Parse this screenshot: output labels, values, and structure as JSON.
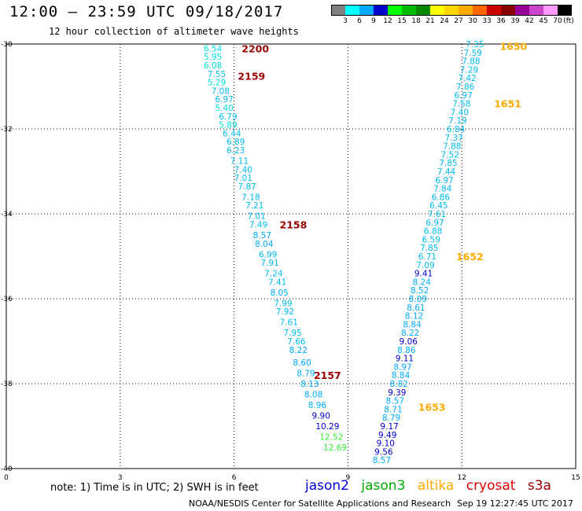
{
  "header": {
    "title": "12:00 — 23:59 UTC 09/18/2017",
    "subtitle": "12 hour collection of altimeter wave heights"
  },
  "colorbar": {
    "unit": "(ft)",
    "labels": [
      "3",
      "6",
      "9",
      "12",
      "15",
      "18",
      "21",
      "24",
      "27",
      "30",
      "33",
      "36",
      "39",
      "42",
      "45",
      "70"
    ],
    "colors": [
      "#808080",
      "#00ffff",
      "#00aaff",
      "#0000cc",
      "#00ff00",
      "#00bb00",
      "#008800",
      "#ffff00",
      "#ffd700",
      "#ffaa00",
      "#ff6600",
      "#cc0000",
      "#880000",
      "#990099",
      "#cc44cc",
      "#ff99ff",
      "#000000"
    ]
  },
  "legend": {
    "note": "note: 1) Time is in UTC; 2) SWH is in feet",
    "satellites": [
      {
        "name": "jason2",
        "color": "#0000dd"
      },
      {
        "name": "jason3",
        "color": "#00aa00"
      },
      {
        "name": "altika",
        "color": "#ffaa00"
      },
      {
        "name": "cryosat",
        "color": "#dd0000"
      },
      {
        "name": "s3a",
        "color": "#990000"
      }
    ]
  },
  "footer": {
    "credit": "NOAA/NESDIS Center for Satellite Applications and Research",
    "timestamp": "Sep 19 12:27:45 UTC 2017"
  },
  "chart_data": {
    "type": "scatter",
    "xlim": [
      0,
      15
    ],
    "ylim": [
      -40,
      -30
    ],
    "xticks": [
      "0",
      "3",
      "6",
      "9",
      "12",
      "15"
    ],
    "yticks": [
      "-30",
      "-32",
      "-34",
      "-36",
      "-38",
      "-40"
    ],
    "grid": true,
    "tracks": [
      {
        "satellite": "s3a",
        "time_labels": [
          {
            "label": "2200",
            "x": 6.2,
            "y": -30.1
          },
          {
            "label": "2159",
            "x": 6.1,
            "y": -30.75
          },
          {
            "label": "2158",
            "x": 7.2,
            "y": -34.25
          },
          {
            "label": "2157",
            "x": 8.1,
            "y": -37.8
          }
        ],
        "points": [
          {
            "x": 5.2,
            "y": -30.1,
            "v": "6.54",
            "c": "#00dddd"
          },
          {
            "x": 5.2,
            "y": -30.3,
            "v": "5.95",
            "c": "#00dddd"
          },
          {
            "x": 5.2,
            "y": -30.5,
            "v": "6.08",
            "c": "#00dddd"
          },
          {
            "x": 5.3,
            "y": -30.7,
            "v": "7.55",
            "c": "#00bbee"
          },
          {
            "x": 5.3,
            "y": -30.9,
            "v": "5.29",
            "c": "#00dddd"
          },
          {
            "x": 5.4,
            "y": -31.1,
            "v": "7.08",
            "c": "#00bbee"
          },
          {
            "x": 5.5,
            "y": -31.3,
            "v": "6.97",
            "c": "#00bbee"
          },
          {
            "x": 5.5,
            "y": -31.5,
            "v": "5.40",
            "c": "#00dddd"
          },
          {
            "x": 5.6,
            "y": -31.7,
            "v": "6.79",
            "c": "#00bbee"
          },
          {
            "x": 5.6,
            "y": -31.9,
            "v": "5.89",
            "c": "#00dddd"
          },
          {
            "x": 5.7,
            "y": -32.1,
            "v": "6.44",
            "c": "#00bbee"
          },
          {
            "x": 5.8,
            "y": -32.3,
            "v": "6.89",
            "c": "#00bbee"
          },
          {
            "x": 5.8,
            "y": -32.5,
            "v": "6.23",
            "c": "#00bbee"
          },
          {
            "x": 5.9,
            "y": -32.75,
            "v": "7.11",
            "c": "#00bbee"
          },
          {
            "x": 6.0,
            "y": -32.95,
            "v": "7.40",
            "c": "#00bbee"
          },
          {
            "x": 6.0,
            "y": -33.15,
            "v": "7.01",
            "c": "#00bbee"
          },
          {
            "x": 6.1,
            "y": -33.35,
            "v": "7.87",
            "c": "#00bbee"
          },
          {
            "x": 6.2,
            "y": -33.6,
            "v": "7.18",
            "c": "#00bbee"
          },
          {
            "x": 6.3,
            "y": -33.8,
            "v": "7.21",
            "c": "#00bbee"
          },
          {
            "x": 6.35,
            "y": -34.05,
            "v": "7.01",
            "c": "#00bbee"
          },
          {
            "x": 6.4,
            "y": -34.25,
            "v": "7.49",
            "c": "#00bbee"
          },
          {
            "x": 6.5,
            "y": -34.5,
            "v": "8.57",
            "c": "#00aaff"
          },
          {
            "x": 6.55,
            "y": -34.7,
            "v": "8.04",
            "c": "#00aaff"
          },
          {
            "x": 6.65,
            "y": -34.95,
            "v": "6.99",
            "c": "#00bbee"
          },
          {
            "x": 6.7,
            "y": -35.15,
            "v": "7.91",
            "c": "#00bbee"
          },
          {
            "x": 6.8,
            "y": -35.4,
            "v": "7.24",
            "c": "#00bbee"
          },
          {
            "x": 6.9,
            "y": -35.6,
            "v": "7.41",
            "c": "#00bbee"
          },
          {
            "x": 6.95,
            "y": -35.85,
            "v": "8.05",
            "c": "#00aaff"
          },
          {
            "x": 7.05,
            "y": -36.1,
            "v": "7.99",
            "c": "#00bbee"
          },
          {
            "x": 7.1,
            "y": -36.3,
            "v": "7.92",
            "c": "#00bbee"
          },
          {
            "x": 7.2,
            "y": -36.55,
            "v": "7.61",
            "c": "#00bbee"
          },
          {
            "x": 7.3,
            "y": -36.8,
            "v": "7.95",
            "c": "#00bbee"
          },
          {
            "x": 7.4,
            "y": -37.0,
            "v": "7.66",
            "c": "#00bbee"
          },
          {
            "x": 7.45,
            "y": -37.2,
            "v": "8.22",
            "c": "#00aaff"
          },
          {
            "x": 7.55,
            "y": -37.5,
            "v": "8.60",
            "c": "#00aaff"
          },
          {
            "x": 7.65,
            "y": -37.75,
            "v": "8.79",
            "c": "#00aaff"
          },
          {
            "x": 7.75,
            "y": -38.0,
            "v": "8.13",
            "c": "#00aaff"
          },
          {
            "x": 7.85,
            "y": -38.25,
            "v": "8.08",
            "c": "#00aaff"
          },
          {
            "x": 7.95,
            "y": -38.5,
            "v": "8.96",
            "c": "#00aaff"
          },
          {
            "x": 8.05,
            "y": -38.75,
            "v": "9.90",
            "c": "#0000cc"
          },
          {
            "x": 8.15,
            "y": -39.0,
            "v": "10.29",
            "c": "#0000cc"
          },
          {
            "x": 8.25,
            "y": -39.25,
            "v": "12.52",
            "c": "#33ee33"
          },
          {
            "x": 8.35,
            "y": -39.5,
            "v": "12.69",
            "c": "#33ee33"
          }
        ]
      },
      {
        "satellite": "altika",
        "time_labels": [
          {
            "label": "1650",
            "x": 13.0,
            "y": -30.05
          },
          {
            "label": "1651",
            "x": 12.85,
            "y": -31.4
          },
          {
            "label": "1652",
            "x": 11.85,
            "y": -35.0
          },
          {
            "label": "1653",
            "x": 10.85,
            "y": -38.55
          }
        ],
        "points": [
          {
            "x": 12.1,
            "y": -30.0,
            "v": "7.35",
            "c": "#00bbee"
          },
          {
            "x": 12.05,
            "y": -30.2,
            "v": "7.59",
            "c": "#00bbee"
          },
          {
            "x": 12.0,
            "y": -30.4,
            "v": "7.88",
            "c": "#00bbee"
          },
          {
            "x": 11.95,
            "y": -30.6,
            "v": "7.29",
            "c": "#00bbee"
          },
          {
            "x": 11.9,
            "y": -30.8,
            "v": "7.42",
            "c": "#00bbee"
          },
          {
            "x": 11.85,
            "y": -31.0,
            "v": "7.86",
            "c": "#00bbee"
          },
          {
            "x": 11.8,
            "y": -31.2,
            "v": "6.97",
            "c": "#00bbee"
          },
          {
            "x": 11.75,
            "y": -31.4,
            "v": "7.58",
            "c": "#00bbee"
          },
          {
            "x": 11.7,
            "y": -31.6,
            "v": "7.40",
            "c": "#00bbee"
          },
          {
            "x": 11.65,
            "y": -31.8,
            "v": "7.19",
            "c": "#00bbee"
          },
          {
            "x": 11.6,
            "y": -32.0,
            "v": "6.84",
            "c": "#00bbee"
          },
          {
            "x": 11.55,
            "y": -32.2,
            "v": "7.37",
            "c": "#00bbee"
          },
          {
            "x": 11.5,
            "y": -32.4,
            "v": "7.88",
            "c": "#00bbee"
          },
          {
            "x": 11.45,
            "y": -32.6,
            "v": "7.52",
            "c": "#00bbee"
          },
          {
            "x": 11.4,
            "y": -32.8,
            "v": "7.85",
            "c": "#00bbee"
          },
          {
            "x": 11.35,
            "y": -33.0,
            "v": "7.44",
            "c": "#00bbee"
          },
          {
            "x": 11.3,
            "y": -33.2,
            "v": "6.97",
            "c": "#00bbee"
          },
          {
            "x": 11.25,
            "y": -33.4,
            "v": "7.84",
            "c": "#00bbee"
          },
          {
            "x": 11.2,
            "y": -33.6,
            "v": "6.86",
            "c": "#00bbee"
          },
          {
            "x": 11.15,
            "y": -33.8,
            "v": "6.45",
            "c": "#00bbee"
          },
          {
            "x": 11.1,
            "y": -34.0,
            "v": "7.61",
            "c": "#00bbee"
          },
          {
            "x": 11.05,
            "y": -34.2,
            "v": "6.97",
            "c": "#00bbee"
          },
          {
            "x": 11.0,
            "y": -34.4,
            "v": "6.88",
            "c": "#00bbee"
          },
          {
            "x": 10.95,
            "y": -34.6,
            "v": "6.59",
            "c": "#00bbee"
          },
          {
            "x": 10.9,
            "y": -34.8,
            "v": "7.85",
            "c": "#00bbee"
          },
          {
            "x": 10.85,
            "y": -35.0,
            "v": "6.71",
            "c": "#00bbee"
          },
          {
            "x": 10.8,
            "y": -35.2,
            "v": "7.09",
            "c": "#00bbee"
          },
          {
            "x": 10.75,
            "y": -35.4,
            "v": "9.41",
            "c": "#0000cc"
          },
          {
            "x": 10.7,
            "y": -35.6,
            "v": "8.24",
            "c": "#00aaff"
          },
          {
            "x": 10.65,
            "y": -35.8,
            "v": "8.52",
            "c": "#00aaff"
          },
          {
            "x": 10.6,
            "y": -36.0,
            "v": "8.09",
            "c": "#00aaff"
          },
          {
            "x": 10.55,
            "y": -36.2,
            "v": "8.61",
            "c": "#00aaff"
          },
          {
            "x": 10.5,
            "y": -36.4,
            "v": "8.12",
            "c": "#00aaff"
          },
          {
            "x": 10.45,
            "y": -36.6,
            "v": "8.84",
            "c": "#00aaff"
          },
          {
            "x": 10.4,
            "y": -36.8,
            "v": "8.22",
            "c": "#00aaff"
          },
          {
            "x": 10.35,
            "y": -37.0,
            "v": "9.06",
            "c": "#0000cc"
          },
          {
            "x": 10.3,
            "y": -37.2,
            "v": "8.86",
            "c": "#00aaff"
          },
          {
            "x": 10.25,
            "y": -37.4,
            "v": "9.11",
            "c": "#0000cc"
          },
          {
            "x": 10.2,
            "y": -37.6,
            "v": "8.97",
            "c": "#00aaff"
          },
          {
            "x": 10.15,
            "y": -37.8,
            "v": "8.84",
            "c": "#00aaff"
          },
          {
            "x": 10.1,
            "y": -38.0,
            "v": "8.82",
            "c": "#00aaff"
          },
          {
            "x": 10.05,
            "y": -38.2,
            "v": "9.39",
            "c": "#0000cc"
          },
          {
            "x": 10.0,
            "y": -38.4,
            "v": "8.57",
            "c": "#00aaff"
          },
          {
            "x": 9.95,
            "y": -38.6,
            "v": "8.71",
            "c": "#00aaff"
          },
          {
            "x": 9.9,
            "y": -38.8,
            "v": "8.79",
            "c": "#00aaff"
          },
          {
            "x": 9.85,
            "y": -39.0,
            "v": "9.17",
            "c": "#0000cc"
          },
          {
            "x": 9.8,
            "y": -39.2,
            "v": "9.49",
            "c": "#0000cc"
          },
          {
            "x": 9.75,
            "y": -39.4,
            "v": "9.10",
            "c": "#0000cc"
          },
          {
            "x": 9.7,
            "y": -39.6,
            "v": "9.56",
            "c": "#0000cc"
          },
          {
            "x": 9.65,
            "y": -39.8,
            "v": "8.57",
            "c": "#00aaff"
          }
        ]
      }
    ]
  }
}
